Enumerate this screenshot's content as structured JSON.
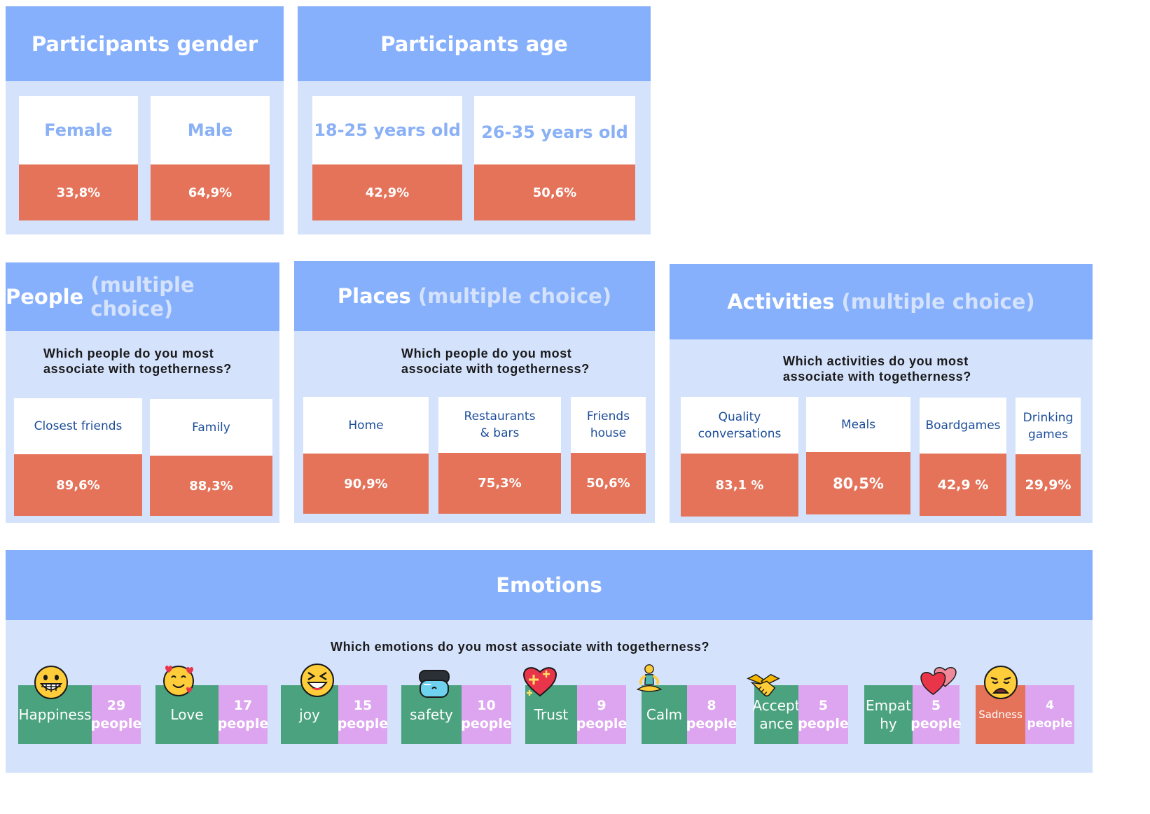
{
  "gender": {
    "title": "Participants gender",
    "cards": [
      {
        "label": "Female",
        "value": "33,8%"
      },
      {
        "label": "Male",
        "value": "64,9%"
      }
    ]
  },
  "age": {
    "title": "Participants age",
    "cards": [
      {
        "label": "18-25 years old",
        "value": "42,9%"
      },
      {
        "label": "26-35 years old",
        "value": "50,6%"
      }
    ]
  },
  "people": {
    "title": "People",
    "title_suffix": "(multiple choice)",
    "question_line1": "Which people do you most",
    "question_line2": "associate with togetherness?",
    "cards": [
      {
        "label": "Closest friends",
        "value": "89,6%"
      },
      {
        "label": "Family",
        "value": "88,3%"
      }
    ]
  },
  "places": {
    "title": "Places",
    "title_suffix": "(multiple choice)",
    "question_line1": "Which people do you most",
    "question_line2": "associate with togetherness?",
    "cards": [
      {
        "label": "Home",
        "value": "90,9%"
      },
      {
        "label_line1": "Restaurants",
        "label_line2": "& bars",
        "value": "75,3%"
      },
      {
        "label_line1": "Friends",
        "label_line2": "house",
        "value": "50,6%"
      }
    ]
  },
  "activities": {
    "title": "Activities",
    "title_suffix": "(multiple choice)",
    "question_line1": "Which activities do you most",
    "question_line2": "associate with togetherness?",
    "cards": [
      {
        "label_line1": "Quality",
        "label_line2": "conversations",
        "value": "83,1 %"
      },
      {
        "label": "Meals",
        "value": "80,5%"
      },
      {
        "label": "Boardgames",
        "value": "42,9 %"
      },
      {
        "label_line1": "Drinking",
        "label_line2": "games",
        "value": "29,9%"
      }
    ]
  },
  "emotions": {
    "title": "Emotions",
    "question": "Which emotions do you most associate with togetherness?",
    "items": [
      {
        "name": "Happiness",
        "count": "29",
        "unit": "people",
        "icon": "grinning-face-icon"
      },
      {
        "name": "Love",
        "count": "17",
        "unit": "people",
        "icon": "smiling-face-with-hearts-icon"
      },
      {
        "name": "joy",
        "count": "15",
        "unit": "people",
        "icon": "laughing-face-icon"
      },
      {
        "name": "safety",
        "count": "10",
        "unit": "people",
        "icon": "goggles-icon"
      },
      {
        "name": "Trust",
        "count": "9",
        "unit": "people",
        "icon": "sparkling-heart-icon"
      },
      {
        "name": "Calm",
        "count": "8",
        "unit": "people",
        "icon": "person-in-lotus-position-icon"
      },
      {
        "name_line1": "Accept",
        "name_line2": "ance",
        "count": "5",
        "unit": "people",
        "icon": "handshake-icon"
      },
      {
        "name_line1": "Empat",
        "name_line2": "hy",
        "count": "5",
        "unit": "people",
        "icon": "two-hearts-icon"
      },
      {
        "name": "Sadness",
        "count": "4",
        "unit": "people",
        "icon": "weary-face-icon"
      }
    ],
    "colors": {
      "name_bg": "#4ba27e",
      "sadness_bg": "#e4735a",
      "count_bg": "#dda5ef"
    }
  },
  "colors": {
    "header": "#87b0fc",
    "panel": "#d4e2fc",
    "value_bg": "#e4735a",
    "label_text": "#8ab0f6",
    "small_label_text": "#1d4e9a"
  }
}
